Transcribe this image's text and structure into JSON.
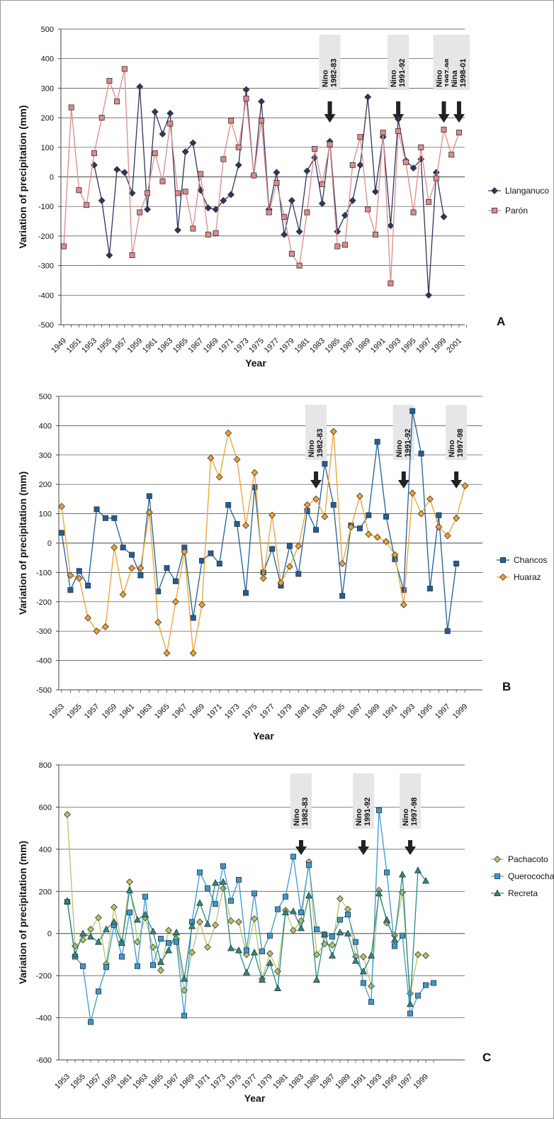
{
  "chart_data": [
    {
      "type": "line",
      "panel_label": "A",
      "xlabel": "Year",
      "ylabel": "Variation of precipitation (mm)",
      "ylim": [
        -500,
        500
      ],
      "yticks": [
        -500,
        -400,
        -300,
        -200,
        -100,
        0,
        100,
        200,
        300,
        400,
        500
      ],
      "xlim": [
        1949,
        2002
      ],
      "xticks": [
        1949,
        1951,
        1953,
        1955,
        1957,
        1959,
        1961,
        1963,
        1965,
        1967,
        1969,
        1971,
        1973,
        1975,
        1977,
        1979,
        1981,
        1983,
        1985,
        1987,
        1989,
        1991,
        1993,
        1995,
        1997,
        1999,
        2001
      ],
      "grid": true,
      "legend_position": "right",
      "series": [
        {
          "name": "Llanganuco",
          "color": "#2e3660",
          "marker": "diamond",
          "x": [
            1953,
            1954,
            1955,
            1956,
            1957,
            1958,
            1959,
            1960,
            1961,
            1962,
            1963,
            1964,
            1965,
            1966,
            1967,
            1968,
            1969,
            1970,
            1971,
            1972,
            1973,
            1974,
            1975,
            1976,
            1977,
            1978,
            1979,
            1980,
            1981,
            1982,
            1983,
            1984,
            1985,
            1986,
            1987,
            1988,
            1989,
            1990,
            1991,
            1992,
            1993,
            1994,
            1995,
            1996,
            1997,
            1998,
            1999
          ],
          "y": [
            40,
            -80,
            -265,
            25,
            15,
            -55,
            305,
            -110,
            220,
            145,
            215,
            -180,
            85,
            115,
            -45,
            -105,
            -110,
            -80,
            -60,
            40,
            295,
            5,
            255,
            -110,
            15,
            -195,
            -80,
            -185,
            20,
            65,
            -90,
            120,
            -185,
            -130,
            -80,
            40,
            270,
            -50,
            135,
            -165,
            195,
            55,
            30,
            60,
            -400,
            15,
            -135
          ]
        },
        {
          "name": "Parón",
          "color": "#e08a8a",
          "marker": "square",
          "x": [
            1949,
            1950,
            1951,
            1952,
            1953,
            1954,
            1955,
            1956,
            1957,
            1958,
            1959,
            1960,
            1961,
            1962,
            1963,
            1964,
            1965,
            1966,
            1967,
            1968,
            1969,
            1970,
            1971,
            1972,
            1973,
            1974,
            1975,
            1976,
            1977,
            1978,
            1979,
            1980,
            1981,
            1982,
            1983,
            1984,
            1985,
            1986,
            1987,
            1988,
            1989,
            1990,
            1991,
            1992,
            1993,
            1994,
            1995,
            1996,
            1997,
            1998,
            1999,
            2000,
            2001
          ],
          "y": [
            -235,
            235,
            -45,
            -95,
            80,
            200,
            325,
            255,
            365,
            -265,
            -120,
            -55,
            80,
            -15,
            180,
            -55,
            -50,
            -175,
            10,
            -195,
            -190,
            60,
            190,
            100,
            265,
            5,
            190,
            -120,
            -20,
            -135,
            -260,
            -300,
            -120,
            95,
            -25,
            110,
            -235,
            -230,
            40,
            135,
            -110,
            -195,
            150,
            -360,
            155,
            50,
            -120,
            100,
            -85,
            -5,
            160,
            75,
            150
          ]
        }
      ],
      "annotations": [
        {
          "line1": "Nino",
          "line2": "1982-83",
          "x": 1984
        },
        {
          "line1": "Nino",
          "line2": "1991-92",
          "x": 1993
        },
        {
          "line1": "Nino",
          "line2": "1997-98",
          "x": 1999
        },
        {
          "line1": "Nina",
          "line2": "1998-01",
          "x": 2001
        }
      ]
    },
    {
      "type": "line",
      "panel_label": "B",
      "xlabel": "Year",
      "ylabel": "Variation of precipitation (mm)",
      "ylim": [
        -500,
        500
      ],
      "yticks": [
        -500,
        -400,
        -300,
        -200,
        -100,
        0,
        100,
        200,
        300,
        400,
        500
      ],
      "xlim": [
        1953,
        1999
      ],
      "xticks": [
        1953,
        1955,
        1957,
        1959,
        1961,
        1963,
        1965,
        1967,
        1969,
        1971,
        1973,
        1975,
        1977,
        1979,
        1981,
        1983,
        1985,
        1987,
        1989,
        1991,
        1993,
        1995,
        1997,
        1999
      ],
      "grid": true,
      "legend_position": "right",
      "series": [
        {
          "name": "Chancos",
          "color": "#1f5f9a",
          "marker": "square",
          "x": [
            1953,
            1954,
            1955,
            1956,
            1957,
            1958,
            1959,
            1960,
            1961,
            1962,
            1963,
            1964,
            1965,
            1966,
            1967,
            1968,
            1969,
            1970,
            1971,
            1972,
            1973,
            1974,
            1975,
            1976,
            1977,
            1978,
            1979,
            1980,
            1981,
            1982,
            1983,
            1984,
            1985,
            1986,
            1987,
            1988,
            1989,
            1990,
            1991,
            1992,
            1993,
            1994,
            1995,
            1996,
            1997,
            1998
          ],
          "y": [
            35,
            -160,
            -95,
            -145,
            115,
            85,
            85,
            -15,
            -40,
            -110,
            160,
            -165,
            -85,
            -130,
            -15,
            -255,
            -60,
            -35,
            -70,
            130,
            65,
            -170,
            190,
            -100,
            -20,
            -145,
            -10,
            -105,
            110,
            45,
            270,
            130,
            -180,
            60,
            50,
            95,
            345,
            90,
            -55,
            -160,
            450,
            305,
            -155,
            95,
            -300,
            -70
          ]
        },
        {
          "name": "Huaraz",
          "color": "#f0a030",
          "marker": "diamond",
          "x": [
            1953,
            1954,
            1955,
            1956,
            1957,
            1958,
            1959,
            1960,
            1961,
            1962,
            1963,
            1964,
            1965,
            1966,
            1967,
            1968,
            1969,
            1970,
            1971,
            1972,
            1973,
            1974,
            1975,
            1976,
            1977,
            1978,
            1979,
            1980,
            1981,
            1982,
            1983,
            1984,
            1985,
            1986,
            1987,
            1988,
            1989,
            1990,
            1991,
            1992,
            1993,
            1994,
            1995,
            1996,
            1997,
            1998,
            1999
          ],
          "y": [
            125,
            -110,
            -120,
            -255,
            -300,
            -285,
            -15,
            -175,
            -85,
            -85,
            105,
            -270,
            -375,
            -200,
            -30,
            -375,
            -210,
            290,
            225,
            375,
            285,
            60,
            240,
            -120,
            95,
            -135,
            -80,
            -10,
            130,
            150,
            90,
            380,
            -70,
            55,
            160,
            30,
            20,
            5,
            -40,
            -210,
            170,
            100,
            150,
            55,
            25,
            85,
            195
          ]
        }
      ],
      "annotations": [
        {
          "line1": "Nino",
          "line2": "1982-83",
          "x": 1982
        },
        {
          "line1": "Nino",
          "line2": "1991-92",
          "x": 1992
        },
        {
          "line1": "Nino",
          "line2": "1997-98",
          "x": 1998
        }
      ]
    },
    {
      "type": "line",
      "panel_label": "C",
      "xlabel": "Year",
      "ylabel": "Variation of precipitation (mm)",
      "ylim": [
        -600,
        800
      ],
      "yticks": [
        -600,
        -400,
        -200,
        0,
        200,
        400,
        600,
        800
      ],
      "xlim": [
        1953,
        2000
      ],
      "xticks": [
        1953,
        1955,
        1957,
        1959,
        1961,
        1963,
        1965,
        1967,
        1969,
        1971,
        1973,
        1975,
        1977,
        1979,
        1981,
        1983,
        1985,
        1987,
        1989,
        1991,
        1993,
        1995,
        1997,
        1999
      ],
      "grid": true,
      "legend_position": "right",
      "series": [
        {
          "name": "Pachacoto",
          "color": "#b5c46a",
          "marker": "diamond",
          "x": [
            1953,
            1954,
            1955,
            1956,
            1957,
            1958,
            1959,
            1960,
            1961,
            1962,
            1963,
            1964,
            1965,
            1966,
            1967,
            1968,
            1969,
            1970,
            1971,
            1972,
            1973,
            1974,
            1975,
            1976,
            1977,
            1978,
            1979,
            1980,
            1981,
            1982,
            1983,
            1984,
            1985,
            1986,
            1987,
            1988,
            1989,
            1990,
            1991,
            1992,
            1993,
            1994,
            1995,
            1996,
            1997,
            1998,
            1999
          ],
          "y": [
            565,
            -60,
            -30,
            20,
            75,
            -145,
            125,
            -40,
            245,
            -40,
            75,
            -65,
            -175,
            15,
            -25,
            -270,
            -90,
            55,
            -65,
            40,
            215,
            60,
            55,
            -100,
            70,
            -215,
            -95,
            -180,
            110,
            15,
            60,
            340,
            -100,
            -50,
            -55,
            165,
            115,
            -110,
            -110,
            -250,
            205,
            50,
            -10,
            195,
            -285,
            -100,
            -105
          ]
        },
        {
          "name": "Querococha",
          "color": "#3a9ad0",
          "marker": "square",
          "x": [
            1953,
            1954,
            1955,
            1956,
            1957,
            1958,
            1959,
            1960,
            1961,
            1962,
            1963,
            1964,
            1965,
            1966,
            1967,
            1968,
            1969,
            1970,
            1971,
            1972,
            1973,
            1974,
            1975,
            1976,
            1977,
            1978,
            1979,
            1980,
            1981,
            1982,
            1983,
            1984,
            1985,
            1986,
            1987,
            1988,
            1989,
            1990,
            1991,
            1992,
            1993,
            1994,
            1995,
            1996,
            1997,
            1998,
            1999,
            2000
          ],
          "y": [
            150,
            -110,
            -155,
            -420,
            -275,
            -160,
            40,
            -110,
            100,
            -155,
            175,
            -150,
            -25,
            -45,
            -40,
            -390,
            55,
            290,
            215,
            140,
            320,
            155,
            255,
            -80,
            190,
            -85,
            -10,
            115,
            175,
            365,
            100,
            325,
            20,
            -5,
            -15,
            65,
            90,
            -40,
            -235,
            -325,
            585,
            290,
            -60,
            -10,
            -380,
            -295,
            -245,
            -235
          ]
        },
        {
          "name": "Recreta",
          "color": "#2a8a8a",
          "marker": "triangle",
          "x": [
            1953,
            1954,
            1955,
            1956,
            1957,
            1958,
            1959,
            1960,
            1961,
            1962,
            1963,
            1964,
            1965,
            1966,
            1967,
            1968,
            1969,
            1970,
            1971,
            1972,
            1973,
            1974,
            1975,
            1976,
            1977,
            1978,
            1979,
            1980,
            1981,
            1982,
            1983,
            1984,
            1985,
            1986,
            1987,
            1988,
            1989,
            1990,
            1991,
            1992,
            1993,
            1994,
            1995,
            1996,
            1997,
            1998,
            1999
          ],
          "y": [
            155,
            -100,
            0,
            -15,
            -40,
            20,
            55,
            -45,
            205,
            65,
            90,
            10,
            -135,
            -80,
            5,
            -215,
            35,
            145,
            45,
            240,
            245,
            -70,
            -80,
            -185,
            -90,
            -220,
            -140,
            -260,
            100,
            105,
            25,
            180,
            -220,
            -5,
            -105,
            5,
            0,
            -130,
            -180,
            -105,
            190,
            65,
            -30,
            280,
            -335,
            300,
            250
          ]
        }
      ],
      "annotations": [
        {
          "line1": "Nino",
          "line2": "1982-83",
          "x": 1983
        },
        {
          "line1": "Nino",
          "line2": "1991-92",
          "x": 1991
        },
        {
          "line1": "Nino",
          "line2": "1997-98",
          "x": 1997
        }
      ]
    }
  ]
}
